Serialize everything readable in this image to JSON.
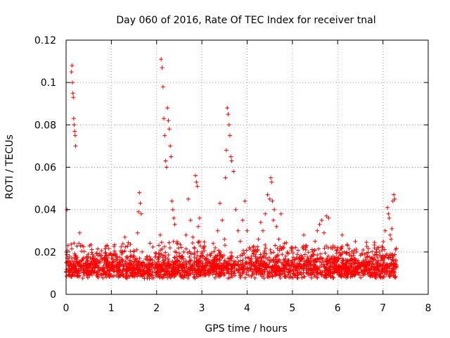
{
  "chart_data": {
    "type": "scatter",
    "title": "Day 060 of 2016, Rate Of TEC Index for receiver tnal",
    "xlabel": "GPS time / hours",
    "ylabel": "ROTI / TECUs",
    "xlim": [
      0,
      8
    ],
    "ylim": [
      0,
      0.12
    ],
    "xticks": [
      "0",
      "1",
      "2",
      "3",
      "4",
      "5",
      "6",
      "7",
      "8"
    ],
    "yticks": [
      "0",
      "0.02",
      "0.04",
      "0.06",
      "0.08",
      "0.1",
      "0.12"
    ],
    "xtick_values": [
      0,
      1,
      2,
      3,
      4,
      5,
      6,
      7,
      8
    ],
    "ytick_values": [
      0,
      0.02,
      0.04,
      0.06,
      0.08,
      0.1,
      0.12
    ],
    "grid": true,
    "marker": "+",
    "color": "#ff0000",
    "series": [
      {
        "name": "ROTI",
        "x": [
          0.0,
          0.02,
          0.04,
          0.05,
          0.07,
          0.08,
          0.1,
          0.12,
          0.13,
          0.14,
          0.15,
          0.16,
          0.17,
          0.18,
          0.19,
          0.2,
          0.21,
          0.22,
          0.23,
          0.25,
          0.27,
          0.3,
          0.33,
          0.35,
          0.38,
          0.4,
          0.43,
          0.45,
          0.48,
          0.5,
          0.55,
          0.6,
          0.65,
          0.7,
          0.75,
          0.8,
          0.85,
          0.9,
          0.95,
          1.0,
          1.05,
          1.1,
          1.15,
          1.2,
          1.25,
          1.3,
          1.35,
          1.4,
          1.45,
          1.5,
          1.55,
          1.58,
          1.6,
          1.62,
          1.64,
          1.66,
          1.68,
          1.7,
          1.75,
          1.8,
          1.85,
          1.9,
          1.95,
          2.0,
          2.05,
          2.08,
          2.1,
          2.12,
          2.14,
          2.16,
          2.18,
          2.2,
          2.22,
          2.24,
          2.26,
          2.28,
          2.3,
          2.32,
          2.34,
          2.36,
          2.38,
          2.4,
          2.45,
          2.5,
          2.55,
          2.6,
          2.65,
          2.7,
          2.75,
          2.8,
          2.83,
          2.86,
          2.88,
          2.9,
          2.92,
          2.95,
          3.0,
          3.05,
          3.1,
          3.15,
          3.2,
          3.25,
          3.3,
          3.35,
          3.4,
          3.45,
          3.5,
          3.52,
          3.54,
          3.56,
          3.58,
          3.6,
          3.62,
          3.64,
          3.66,
          3.7,
          3.75,
          3.8,
          3.85,
          3.9,
          3.95,
          4.0,
          4.05,
          4.1,
          4.15,
          4.2,
          4.25,
          4.3,
          4.35,
          4.4,
          4.45,
          4.5,
          4.52,
          4.54,
          4.56,
          4.58,
          4.6,
          4.65,
          4.7,
          4.75,
          4.8,
          4.85,
          4.9,
          4.95,
          5.0,
          5.05,
          5.1,
          5.15,
          5.2,
          5.25,
          5.3,
          5.35,
          5.4,
          5.45,
          5.5,
          5.55,
          5.6,
          5.65,
          5.7,
          5.75,
          5.8,
          5.85,
          5.9,
          5.95,
          6.0,
          6.05,
          6.1,
          6.15,
          6.2,
          6.25,
          6.3,
          6.35,
          6.4,
          6.45,
          6.5,
          6.55,
          6.6,
          6.65,
          6.7,
          6.75,
          6.8,
          6.85,
          6.9,
          6.95,
          7.0,
          7.05,
          7.1,
          7.12,
          7.14,
          7.16,
          7.18,
          7.2,
          7.22,
          7.24,
          7.26,
          7.28,
          7.3
        ],
        "y": [
          0.015,
          0.04,
          0.023,
          0.012,
          0.018,
          0.01,
          0.014,
          0.105,
          0.108,
          0.1,
          0.095,
          0.093,
          0.083,
          0.08,
          0.077,
          0.075,
          0.07,
          0.018,
          0.012,
          0.009,
          0.014,
          0.029,
          0.011,
          0.016,
          0.013,
          0.009,
          0.012,
          0.017,
          0.008,
          0.014,
          0.011,
          0.016,
          0.013,
          0.009,
          0.018,
          0.012,
          0.015,
          0.01,
          0.014,
          0.017,
          0.011,
          0.019,
          0.013,
          0.009,
          0.016,
          0.027,
          0.012,
          0.015,
          0.01,
          0.018,
          0.013,
          0.029,
          0.039,
          0.048,
          0.043,
          0.038,
          0.02,
          0.015,
          0.01,
          0.013,
          0.016,
          0.009,
          0.012,
          0.014,
          0.018,
          0.028,
          0.111,
          0.107,
          0.098,
          0.083,
          0.075,
          0.063,
          0.06,
          0.088,
          0.082,
          0.078,
          0.07,
          0.065,
          0.044,
          0.04,
          0.036,
          0.033,
          0.024,
          0.018,
          0.013,
          0.02,
          0.028,
          0.045,
          0.035,
          0.027,
          0.022,
          0.056,
          0.053,
          0.051,
          0.032,
          0.036,
          0.02,
          0.013,
          0.017,
          0.011,
          0.015,
          0.024,
          0.018,
          0.03,
          0.043,
          0.035,
          0.026,
          0.055,
          0.068,
          0.088,
          0.085,
          0.08,
          0.075,
          0.065,
          0.063,
          0.058,
          0.04,
          0.03,
          0.025,
          0.035,
          0.044,
          0.03,
          0.022,
          0.018,
          0.014,
          0.02,
          0.026,
          0.034,
          0.03,
          0.038,
          0.047,
          0.045,
          0.055,
          0.053,
          0.044,
          0.035,
          0.04,
          0.032,
          0.026,
          0.038,
          0.022,
          0.018,
          0.014,
          0.011,
          0.015,
          0.009,
          0.012,
          0.017,
          0.013,
          0.028,
          0.022,
          0.016,
          0.011,
          0.02,
          0.025,
          0.03,
          0.033,
          0.035,
          0.029,
          0.037,
          0.036,
          0.022,
          0.018,
          0.013,
          0.016,
          0.011,
          0.028,
          0.02,
          0.015,
          0.012,
          0.018,
          0.014,
          0.011,
          0.016,
          0.013,
          0.019,
          0.012,
          0.015,
          0.01,
          0.017,
          0.013,
          0.02,
          0.016,
          0.014,
          0.022,
          0.03,
          0.041,
          0.038,
          0.036,
          0.028,
          0.026,
          0.031,
          0.044,
          0.047,
          0.045,
          0.021,
          0.013
        ]
      }
    ],
    "dense_band": {
      "x_from": 0.0,
      "x_to": 7.3,
      "y_low": 0.004,
      "y_high": 0.022,
      "count": 2300
    }
  }
}
